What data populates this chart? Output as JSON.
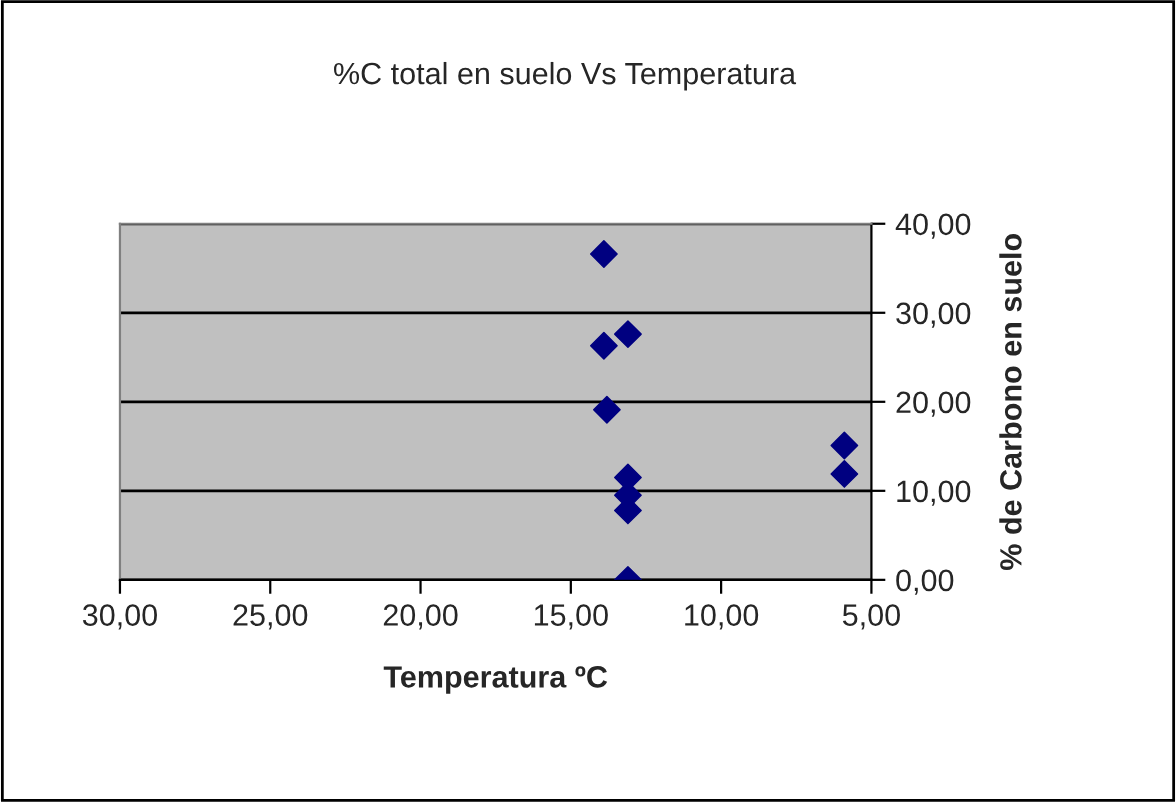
{
  "chart_data": {
    "type": "scatter",
    "title": "%C total en suelo Vs Temperatura",
    "xlabel": "Temperatura ºC",
    "ylabel": "% de Carbono en suelo",
    "x": [
      13.9,
      13.9,
      13.1,
      13.8,
      13.1,
      13.1,
      13.1,
      13.1,
      5.9,
      5.9
    ],
    "values": [
      36.6,
      26.3,
      27.6,
      19.1,
      11.5,
      9.5,
      7.8,
      0,
      15.1,
      11.9
    ],
    "color": "#000080",
    "marker": "diamond",
    "grid": "y",
    "xlim": [
      30,
      5
    ],
    "xticks": [
      {
        "value": 30,
        "label": "30,00"
      },
      {
        "value": 25,
        "label": "25,00"
      },
      {
        "value": 20,
        "label": "20,00"
      },
      {
        "value": 15,
        "label": "15,00"
      },
      {
        "value": 10,
        "label": "10,00"
      },
      {
        "value": 5,
        "label": "5,00"
      }
    ],
    "ylim": [
      0,
      40
    ],
    "yticks": [
      {
        "value": 0,
        "label": "0,00"
      },
      {
        "value": 10,
        "label": "10,00"
      },
      {
        "value": 20,
        "label": "20,00"
      },
      {
        "value": 30,
        "label": "30,00"
      },
      {
        "value": 40,
        "label": "40,00"
      }
    ]
  }
}
